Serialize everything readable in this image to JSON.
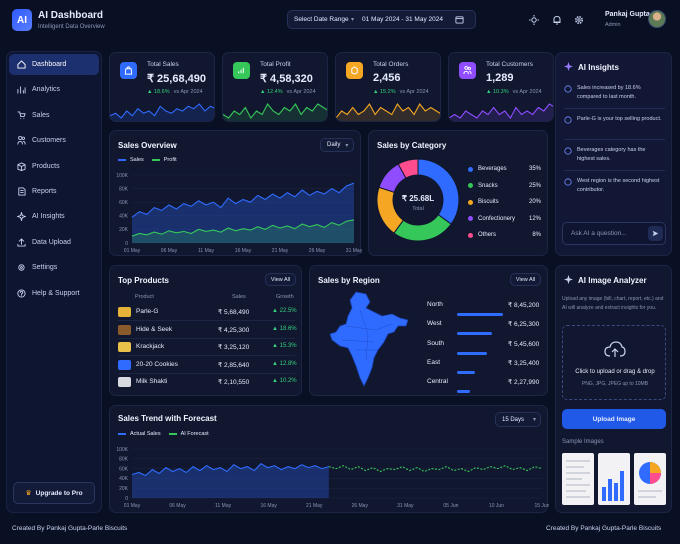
{
  "app": {
    "logo": "AI",
    "title": "AI Dashboard",
    "subtitle": "Intelligent Data Overview"
  },
  "topbar": {
    "date_range_label": "Select Date Range",
    "date_range_value": "01 May 2024 - 31 May 2024",
    "user_name": "Pankaj Gupta",
    "user_role": "Admin"
  },
  "sidebar": {
    "items": [
      {
        "label": "Dashboard",
        "icon": "home-icon"
      },
      {
        "label": "Analytics",
        "icon": "analytics-icon"
      },
      {
        "label": "Sales",
        "icon": "cart-icon"
      },
      {
        "label": "Customers",
        "icon": "users-icon"
      },
      {
        "label": "Products",
        "icon": "box-icon"
      },
      {
        "label": "Reports",
        "icon": "report-icon"
      },
      {
        "label": "AI Insights",
        "icon": "sparkle-icon"
      },
      {
        "label": "Data Upload",
        "icon": "upload-icon"
      },
      {
        "label": "Settings",
        "icon": "gear-icon"
      },
      {
        "label": "Help & Support",
        "icon": "help-icon"
      }
    ],
    "upgrade_label": "Upgrade to Pro"
  },
  "kpis": [
    {
      "label": "Total Sales",
      "value": "₹ 25,68,490",
      "change": "18.6%",
      "compare": "vs Apr 2024",
      "color": "#2f6bff",
      "spark": [
        4,
        5,
        3,
        6,
        4,
        7,
        5,
        6,
        4,
        8,
        6,
        5,
        7,
        6,
        8,
        7,
        9,
        6,
        8,
        7
      ]
    },
    {
      "label": "Total Profit",
      "value": "₹ 4,58,320",
      "change": "12.4%",
      "compare": "vs Apr 2024",
      "color": "#35c759",
      "spark": [
        5,
        4,
        6,
        5,
        7,
        4,
        6,
        5,
        8,
        6,
        5,
        7,
        6,
        8,
        5,
        7,
        6,
        8,
        7,
        6
      ]
    },
    {
      "label": "Total Orders",
      "value": "2,456",
      "change": "15.2%",
      "compare": "vs Apr 2024",
      "color": "#f5a623",
      "spark": [
        4,
        6,
        5,
        7,
        5,
        6,
        8,
        5,
        7,
        6,
        5,
        8,
        6,
        7,
        5,
        8,
        6,
        7,
        6,
        5
      ]
    },
    {
      "label": "Total Customers",
      "value": "1,289",
      "change": "10.3%",
      "compare": "vs Apr 2024",
      "color": "#8f4dff",
      "spark": [
        5,
        6,
        5,
        7,
        6,
        5,
        7,
        6,
        8,
        6,
        7,
        5,
        8,
        6,
        7,
        6,
        8,
        7,
        9,
        8
      ]
    }
  ],
  "sales_overview": {
    "title": "Sales Overview",
    "period": "Daily",
    "legend": [
      "Sales",
      "Profit"
    ],
    "y_ticks": [
      "100K",
      "80K",
      "60K",
      "40K",
      "20K",
      "0"
    ],
    "x_ticks": [
      "01 May",
      "06 May",
      "11 May",
      "16 May",
      "21 May",
      "26 May",
      "31 May"
    ]
  },
  "sales_by_category": {
    "title": "Sales by Category",
    "center_value": "₹ 25.68L",
    "center_label": "Total",
    "items": [
      {
        "name": "Beverages",
        "pct": "35%",
        "value": 35,
        "color": "#2f6bff"
      },
      {
        "name": "Snacks",
        "pct": "25%",
        "value": 25,
        "color": "#35c759"
      },
      {
        "name": "Biscuits",
        "pct": "20%",
        "value": 20,
        "color": "#f5a623"
      },
      {
        "name": "Confectionery",
        "pct": "12%",
        "value": 12,
        "color": "#8f4dff"
      },
      {
        "name": "Others",
        "pct": "8%",
        "value": 8,
        "color": "#ff4d8d"
      }
    ]
  },
  "ai_insights": {
    "title": "AI Insights",
    "items": [
      "Sales increased by 18.6% compared to last month.",
      "Parle-G is your top selling product.",
      "Beverages category has the highest sales.",
      "West region is the second highest contributor."
    ],
    "ask_placeholder": "Ask AI a question..."
  },
  "top_products": {
    "title": "Top Products",
    "view_all": "View All",
    "columns": [
      "Product",
      "Sales",
      "Growth"
    ],
    "rows": [
      {
        "name": "Parle-G",
        "sales": "₹ 5,68,490",
        "growth": "22.5%",
        "thumb": "#e5b23a"
      },
      {
        "name": "Hide & Seek",
        "sales": "₹ 4,25,300",
        "growth": "18.6%",
        "thumb": "#8a5a2b"
      },
      {
        "name": "Krackjack",
        "sales": "₹ 3,25,120",
        "growth": "15.3%",
        "thumb": "#e8c04a"
      },
      {
        "name": "20-20 Cookies",
        "sales": "₹ 2,85,640",
        "growth": "12.8%",
        "thumb": "#2f6bff"
      },
      {
        "name": "Milk Shakti",
        "sales": "₹ 2,10,550",
        "growth": "10.2%",
        "thumb": "#d9d9e0"
      }
    ]
  },
  "sales_by_region": {
    "title": "Sales by Region",
    "view_all": "View All",
    "rows": [
      {
        "name": "North",
        "value": "₹ 8,45,200",
        "share": 0.92
      },
      {
        "name": "West",
        "value": "₹ 6,25,300",
        "share": 0.7
      },
      {
        "name": "South",
        "value": "₹ 5,45,600",
        "share": 0.6
      },
      {
        "name": "East",
        "value": "₹ 3,25,400",
        "share": 0.36
      },
      {
        "name": "Central",
        "value": "₹ 2,27,990",
        "share": 0.25
      }
    ]
  },
  "ai_image_analyzer": {
    "title": "AI Image Analyzer",
    "description": "Upload any image (bill, chart, report, etc.) and AI will analyze and extract insights for you.",
    "drop_label": "Click to upload or drag & drop",
    "drop_hint": "PNG, JPG, JPEG up to 10MB",
    "upload_button": "Upload Image",
    "samples_label": "Sample Images"
  },
  "trend": {
    "title": "Sales Trend with Forecast",
    "period": "15 Days",
    "legend": [
      "Actual Sales",
      "AI Forecast"
    ],
    "y_ticks": [
      "100K",
      "80K",
      "60K",
      "40K",
      "20K",
      "0"
    ],
    "x_ticks": [
      "01 May",
      "06 May",
      "11 May",
      "16 May",
      "21 May",
      "26 May",
      "31 May",
      "05 Jun",
      "10 Jun",
      "15 Jun"
    ]
  },
  "footer": {
    "left": "Created By Pankaj Gupta-Parle Biscuits",
    "right": "Created By Pankaj Gupta-Parle Biscuits"
  },
  "colors": {
    "accent": "#2f6bff",
    "success": "#35c759",
    "background": "#0a1024"
  },
  "chart_data": [
    {
      "type": "area",
      "title": "Sales Overview",
      "x": [
        "01 May",
        "02 May",
        "03 May",
        "04 May",
        "05 May",
        "06 May",
        "07 May",
        "08 May",
        "09 May",
        "10 May",
        "11 May",
        "12 May",
        "13 May",
        "14 May",
        "15 May",
        "16 May",
        "17 May",
        "18 May",
        "19 May",
        "20 May",
        "21 May",
        "22 May",
        "23 May",
        "24 May",
        "25 May",
        "26 May",
        "27 May",
        "28 May",
        "29 May",
        "30 May",
        "31 May"
      ],
      "series": [
        {
          "name": "Sales",
          "values": [
            38,
            46,
            42,
            52,
            48,
            56,
            50,
            58,
            54,
            62,
            56,
            60,
            52,
            66,
            58,
            64,
            60,
            70,
            64,
            72,
            66,
            74,
            68,
            78,
            70,
            76,
            72,
            80,
            74,
            84,
            88
          ]
        },
        {
          "name": "Profit",
          "values": [
            10,
            14,
            12,
            16,
            13,
            18,
            15,
            17,
            14,
            20,
            17,
            19,
            16,
            22,
            18,
            21,
            19,
            24,
            20,
            26,
            22,
            25,
            21,
            28,
            24,
            27,
            23,
            30,
            26,
            32,
            34
          ]
        }
      ],
      "ylim": [
        0,
        100
      ]
    },
    {
      "type": "pie",
      "title": "Sales by Category",
      "categories": [
        "Beverages",
        "Snacks",
        "Biscuits",
        "Confectionery",
        "Others"
      ],
      "values": [
        35,
        25,
        20,
        12,
        8
      ]
    },
    {
      "type": "line",
      "title": "Sales Trend with Forecast",
      "series": [
        {
          "name": "Actual Sales",
          "values": [
            48,
            52,
            46,
            58,
            50,
            62,
            54,
            60,
            52,
            64,
            56,
            66,
            58,
            62,
            54,
            68,
            60,
            64,
            56,
            70,
            62,
            66,
            58,
            64,
            60,
            68,
            62,
            66,
            60,
            64
          ]
        },
        {
          "name": "AI Forecast",
          "values": [
            64,
            60,
            66,
            58,
            64,
            56,
            62,
            54,
            60,
            58,
            64,
            56,
            62,
            54,
            60,
            58,
            64,
            56,
            60,
            54,
            62,
            58,
            64,
            60,
            66,
            58,
            62,
            56,
            64,
            60
          ]
        }
      ],
      "ylim": [
        0,
        100
      ]
    }
  ]
}
